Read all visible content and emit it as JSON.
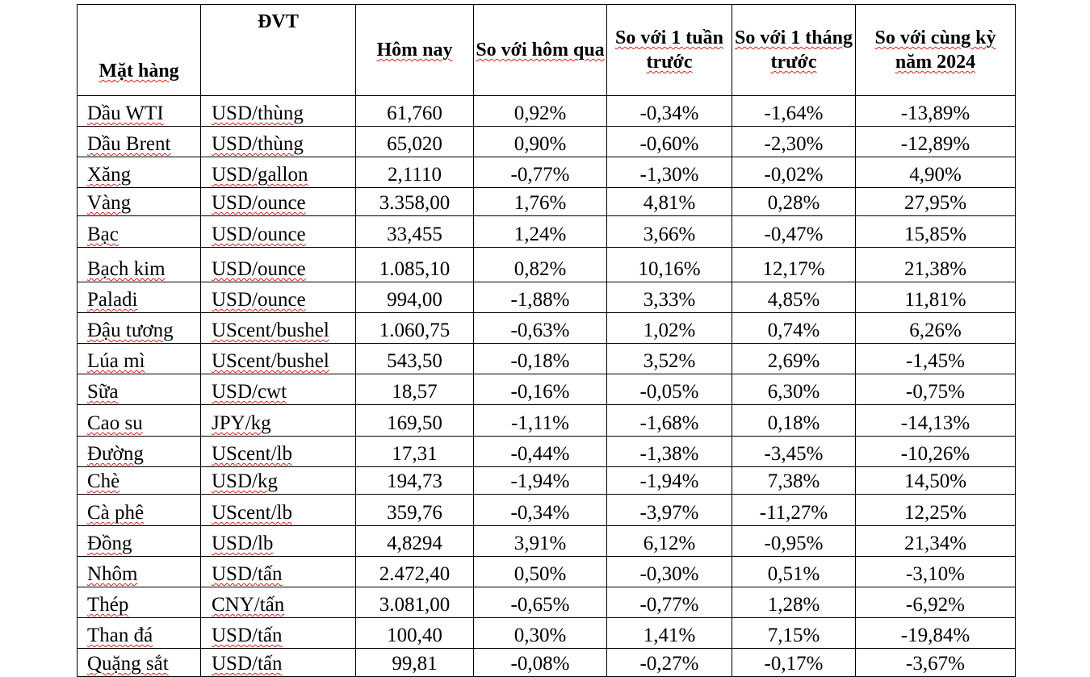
{
  "headers": [
    "Mặt hàng",
    "ĐVT",
    "Hôm nay",
    "So với hôm qua",
    "So với 1 tuần trước",
    "So với 1 tháng trước",
    "So với cùng kỳ năm 2024"
  ],
  "rows": [
    {
      "name": "Dầu WTI",
      "unit": "USD/thùng",
      "today": "61,760",
      "day": "0,92%",
      "week": "-0,34%",
      "month": "-1,64%",
      "year": "-13,89%"
    },
    {
      "name": "Dầu Brent",
      "unit": "USD/thùng",
      "today": "65,020",
      "day": "0,90%",
      "week": "-0,60%",
      "month": "-2,30%",
      "year": "-12,89%"
    },
    {
      "name": "Xăng",
      "unit": "USD/gallon",
      "today": "2,1110",
      "day": "-0,77%",
      "week": "-1,30%",
      "month": "-0,02%",
      "year": "4,90%"
    },
    {
      "name": "Vàng",
      "unit": "USD/ounce",
      "today": "3.358,00",
      "day": "1,76%",
      "week": "4,81%",
      "month": "0,28%",
      "year": "27,95%"
    },
    {
      "name": "Bạc",
      "unit": "USD/ounce",
      "today": "33,455",
      "day": "1,24%",
      "week": "3,66%",
      "month": "-0,47%",
      "year": "15,85%"
    },
    {
      "name": "Bạch kim",
      "unit": "USD/ounce",
      "today": "1.085,10",
      "day": "0,82%",
      "week": "10,16%",
      "month": "12,17%",
      "year": "21,38%"
    },
    {
      "name": "Paladi",
      "unit": "USD/ounce",
      "today": "994,00",
      "day": "-1,88%",
      "week": "3,33%",
      "month": "4,85%",
      "year": "11,81%"
    },
    {
      "name": "Đậu tương",
      "unit": "UScent/bushel",
      "today": "1.060,75",
      "day": "-0,63%",
      "week": "1,02%",
      "month": "0,74%",
      "year": "6,26%"
    },
    {
      "name": "Lúa mì",
      "unit": "UScent/bushel",
      "today": "543,50",
      "day": "-0,18%",
      "week": "3,52%",
      "month": "2,69%",
      "year": "-1,45%"
    },
    {
      "name": "Sữa",
      "unit": "USD/cwt",
      "today": "18,57",
      "day": "-0,16%",
      "week": "-0,05%",
      "month": "6,30%",
      "year": "-0,75%"
    },
    {
      "name": "Cao su",
      "unit": "JPY/kg",
      "today": "169,50",
      "day": "-1,11%",
      "week": "-1,68%",
      "month": "0,18%",
      "year": "-14,13%"
    },
    {
      "name": "Đường",
      "unit": "UScent/lb",
      "today": "17,31",
      "day": "-0,44%",
      "week": "-1,38%",
      "month": "-3,45%",
      "year": "-10,26%"
    },
    {
      "name": "Chè",
      "unit": "USD/kg",
      "today": "194,73",
      "day": "-1,94%",
      "week": "-1,94%",
      "month": "7,38%",
      "year": "14,50%"
    },
    {
      "name": "Cà phê",
      "unit": "UScent/lb",
      "today": "359,76",
      "day": "-0,34%",
      "week": "-3,97%",
      "month": "-11,27%",
      "year": "12,25%"
    },
    {
      "name": "Đồng",
      "unit": "USD/lb",
      "today": "4,8294",
      "day": "3,91%",
      "week": "6,12%",
      "month": "-0,95%",
      "year": "21,34%"
    },
    {
      "name": "Nhôm",
      "unit": "USD/tấn",
      "today": "2.472,40",
      "day": "0,50%",
      "week": "-0,30%",
      "month": "0,51%",
      "year": "-3,10%"
    },
    {
      "name": "Thép",
      "unit": "CNY/tấn",
      "today": "3.081,00",
      "day": "-0,65%",
      "week": "-0,77%",
      "month": "1,28%",
      "year": "-6,92%"
    },
    {
      "name": "Than đá",
      "unit": "USD/tấn",
      "today": "100,40",
      "day": "0,30%",
      "week": "1,41%",
      "month": "7,15%",
      "year": "-19,84%"
    },
    {
      "name": "Quặng sắt",
      "unit": "USD/tấn",
      "today": "99,81",
      "day": "-0,08%",
      "week": "-0,27%",
      "month": "-0,17%",
      "year": "-3,67%"
    }
  ],
  "colors": {
    "text": "#000000",
    "border": "#000000",
    "spellcheck_underline": "#d42020"
  }
}
